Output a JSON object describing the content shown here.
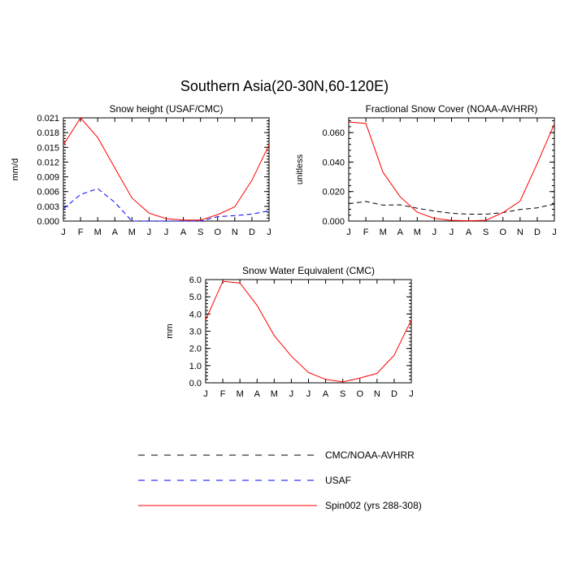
{
  "figure": {
    "title": "Southern Asia(20-30N,60-120E)"
  },
  "legend": {
    "placement": "bottom",
    "items": [
      {
        "label": "CMC/NOAA-AVHRR",
        "color": "#000000",
        "style": "dashed"
      },
      {
        "label": "USAF",
        "color": "#0000ff",
        "style": "dashed"
      },
      {
        "label": "Spin002 (yrs 288-308)",
        "color": "#ff0000",
        "style": "solid"
      }
    ]
  },
  "chart_data": [
    {
      "type": "line",
      "title": "Snow height (USAF/CMC)",
      "xlabel": "",
      "ylabel": "mm/d",
      "categories": [
        "J",
        "F",
        "M",
        "A",
        "M",
        "J",
        "J",
        "A",
        "S",
        "O",
        "N",
        "D",
        "J"
      ],
      "ylim": [
        0,
        0.021
      ],
      "yticks": [
        "0.000",
        "0.003",
        "0.006",
        "0.009",
        "0.012",
        "0.015",
        "0.018",
        "0.021"
      ],
      "yticks_values": [
        0,
        0.003,
        0.006,
        0.009,
        0.012,
        0.015,
        0.018,
        0.021
      ],
      "series": [
        {
          "name": "CMC/NOAA-AVHRR",
          "color": "#000000",
          "style": "dashed",
          "values": [
            0,
            0,
            0,
            0,
            0,
            0,
            0,
            0,
            0,
            0,
            0,
            0,
            0
          ]
        },
        {
          "name": "USAF",
          "color": "#0000ff",
          "style": "dashed",
          "values": [
            0.0025,
            0.0054,
            0.0066,
            0.0038,
            0,
            0,
            0,
            0,
            0,
            0.0009,
            0.0011,
            0.0014,
            0.0021
          ]
        },
        {
          "name": "Spin002 (yrs 288-308)",
          "color": "#ff0000",
          "style": "solid",
          "values": [
            0.0155,
            0.021,
            0.017,
            0.0108,
            0.0047,
            0.0016,
            0.0005,
            0.0002,
            0.0002,
            0.0013,
            0.0029,
            0.0083,
            0.0155
          ]
        }
      ]
    },
    {
      "type": "line",
      "title": "Fractional Snow Cover (NOAA-AVHRR)",
      "xlabel": "",
      "ylabel": "unitless",
      "categories": [
        "J",
        "F",
        "M",
        "A",
        "M",
        "J",
        "J",
        "A",
        "S",
        "O",
        "N",
        "D",
        "J"
      ],
      "ylim": [
        0,
        0.07
      ],
      "yticks": [
        "0.000",
        "0.020",
        "0.040",
        "0.060"
      ],
      "yticks_values": [
        0,
        0.02,
        0.04,
        0.06
      ],
      "series": [
        {
          "name": "CMC/NOAA-AVHRR",
          "color": "#000000",
          "style": "dashed",
          "values": [
            0.0118,
            0.0133,
            0.0108,
            0.011,
            0.0087,
            0.0068,
            0.0053,
            0.0047,
            0.0047,
            0.0058,
            0.0078,
            0.009,
            0.0115
          ]
        },
        {
          "name": "Spin002 (yrs 288-308)",
          "color": "#ff0000",
          "style": "solid",
          "values": [
            0.0672,
            0.0662,
            0.033,
            0.0165,
            0.006,
            0.0018,
            0.0005,
            0.0002,
            0.0005,
            0.0058,
            0.0135,
            0.039,
            0.066
          ]
        }
      ]
    },
    {
      "type": "line",
      "title": "Snow Water Equivalent (CMC)",
      "xlabel": "",
      "ylabel": "mm",
      "categories": [
        "J",
        "F",
        "M",
        "A",
        "M",
        "J",
        "J",
        "A",
        "S",
        "O",
        "N",
        "D",
        "J"
      ],
      "ylim": [
        0,
        6.0
      ],
      "yticks": [
        "0.0",
        "1.0",
        "2.0",
        "3.0",
        "4.0",
        "5.0",
        "6.0"
      ],
      "yticks_values": [
        0,
        1,
        2,
        3,
        4,
        5,
        6
      ],
      "series": [
        {
          "name": "CMC/NOAA-AVHRR",
          "color": "#000000",
          "style": "dashed",
          "values": [
            0,
            0,
            0,
            0,
            0,
            0,
            0,
            0,
            0,
            0,
            0,
            0,
            0
          ]
        },
        {
          "name": "Spin002 (yrs 288-308)",
          "color": "#ff0000",
          "style": "solid",
          "values": [
            3.65,
            5.9,
            5.8,
            4.5,
            2.75,
            1.55,
            0.6,
            0.2,
            0.05,
            0.28,
            0.55,
            1.6,
            3.65
          ]
        }
      ]
    }
  ]
}
